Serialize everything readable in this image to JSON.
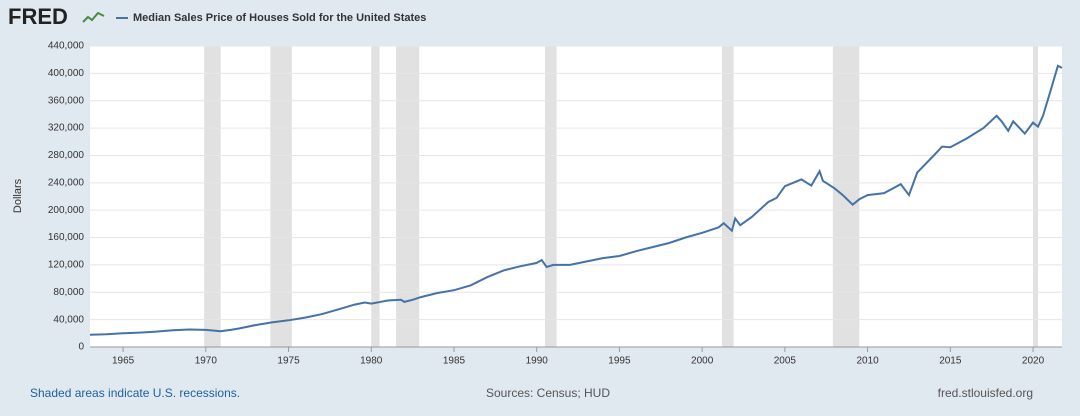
{
  "logo": "FRED",
  "footer": {
    "left": "Shaded areas indicate U.S. recessions.",
    "center": "Sources: Census; HUD",
    "right": "fred.stlouisfed.org"
  },
  "chart_data": {
    "type": "line",
    "ylabel": "Dollars",
    "series": [
      {
        "name": "Median Sales Price of Houses Sold for the United States",
        "color": "#4572a7",
        "x": [
          1963,
          1964,
          1965,
          1966,
          1967,
          1968,
          1969,
          1970,
          1970.9,
          1971.5,
          1972,
          1973,
          1974,
          1975,
          1976,
          1977,
          1978,
          1979,
          1979.6,
          1980,
          1981,
          1981.8,
          1982,
          1982.5,
          1983,
          1984,
          1985,
          1986,
          1987,
          1988,
          1989,
          1990,
          1990.3,
          1990.6,
          1991,
          1992,
          1993,
          1994,
          1995,
          1996,
          1997,
          1998,
          1999,
          2000,
          2001,
          2001.3,
          2001.8,
          2002,
          2002.3,
          2003,
          2004,
          2004.5,
          2005,
          2006,
          2006.6,
          2007.1,
          2007.3,
          2008,
          2008.5,
          2009.1,
          2009.5,
          2010,
          2011,
          2012,
          2012.5,
          2013,
          2014,
          2014.5,
          2015,
          2016,
          2017,
          2017.8,
          2018.1,
          2018.5,
          2018.8,
          2019.5,
          2020,
          2020.3,
          2020.6,
          2021,
          2021.5,
          2021.75
        ],
        "values": [
          17800,
          18500,
          20000,
          21000,
          22500,
          24500,
          25600,
          25000,
          23000,
          25000,
          27000,
          32000,
          35900,
          39000,
          43000,
          48000,
          55000,
          62000,
          65000,
          63500,
          68000,
          69000,
          66000,
          69000,
          73000,
          79000,
          83000,
          90000,
          102000,
          112000,
          118000,
          123000,
          127000,
          117000,
          120000,
          120000,
          125000,
          130000,
          133000,
          140000,
          146000,
          152000,
          160000,
          167000,
          175000,
          181000,
          170000,
          188000,
          178000,
          190000,
          212000,
          218000,
          235000,
          245000,
          236000,
          257000,
          243000,
          232000,
          222000,
          208000,
          216000,
          222000,
          225000,
          238000,
          222000,
          255000,
          280000,
          293000,
          292000,
          305000,
          320000,
          338000,
          330000,
          316000,
          330000,
          312000,
          328000,
          322000,
          338000,
          370000,
          411000,
          408000
        ]
      }
    ],
    "recessions": [
      [
        1969.9,
        1970.9
      ],
      [
        1973.9,
        1975.2
      ],
      [
        1980,
        1980.5
      ],
      [
        1981.5,
        1982.9
      ],
      [
        1990.5,
        1991.2
      ],
      [
        2001.2,
        2001.9
      ],
      [
        2007.9,
        2009.5
      ],
      [
        2020,
        2020.3
      ]
    ],
    "xlim": [
      1963,
      2021.75
    ],
    "xticks": [
      1965,
      1970,
      1975,
      1980,
      1985,
      1990,
      1995,
      2000,
      2005,
      2010,
      2015,
      2020
    ],
    "ylim": [
      0,
      440000
    ],
    "yticks": [
      0,
      {
        "value": 40000,
        "label": "40,000"
      },
      {
        "value": 80000,
        "label": "80,000"
      },
      {
        "value": 120000,
        "label": "120,000"
      },
      {
        "value": 160000,
        "label": "160,000"
      },
      {
        "value": 200000,
        "label": "200,000"
      },
      {
        "value": 240000,
        "label": "240,000"
      },
      {
        "value": 280000,
        "label": "280,000"
      },
      {
        "value": 320000,
        "label": "320,000"
      },
      {
        "value": 360000,
        "label": "360,000"
      },
      {
        "value": 400000,
        "label": "400,000"
      },
      {
        "value": 440000,
        "label": "440,000"
      }
    ],
    "grid": true
  }
}
